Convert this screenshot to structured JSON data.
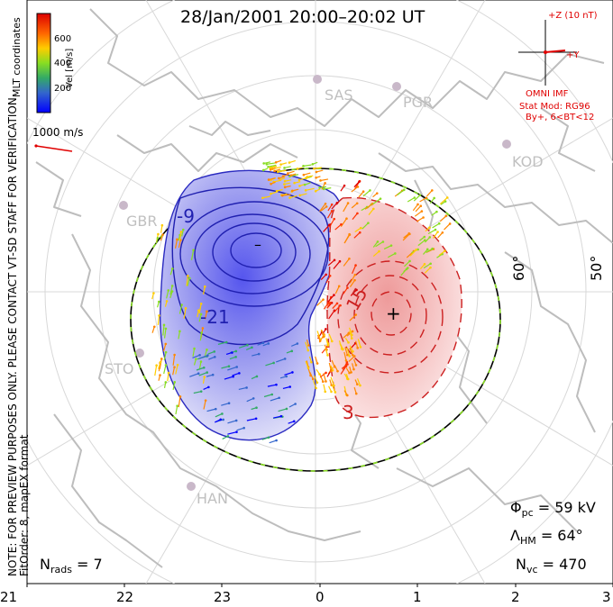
{
  "title": "28/Jan/2001  20:00–20:02 UT",
  "coordinate_system": "MLT coordinates",
  "vel_legend": {
    "label": "Vel [m/s]",
    "ticks": [
      "600",
      "400",
      "200"
    ],
    "colors": [
      "#0000ff",
      "#3366cc",
      "#33aa66",
      "#88dd22",
      "#ffcc00",
      "#ff8800",
      "#ff3300",
      "#dd0000"
    ]
  },
  "scale_vector_label": "1000 m/s",
  "imf": {
    "z_label": "+Z (10 nT)",
    "y_label": "+Y",
    "source": "OMNI IMF",
    "stat_mod": "Stat Mod: RG96",
    "condition": "By+, 6<BT<12",
    "color": "#e00000"
  },
  "side_note": "NOTE: FOR PREVIEW PURPOSES ONLY. PLEASE CONTACT VT-SD STAFF FOR VERIFICATION.",
  "fit_order": "FitOrder: 8, mapEX format",
  "stations": [
    "SAS",
    "PGR",
    "KOD",
    "GBR",
    "STO",
    "HAN"
  ],
  "latitude_labels": [
    "60°",
    "50°"
  ],
  "contour_labels": [
    "-9",
    "-21",
    "15",
    "3"
  ],
  "potential_markers": {
    "min": "–",
    "max": "+"
  },
  "stats": {
    "phi_label": "Φ",
    "phi_sub": "pc",
    "phi_value": "= 59 kV",
    "lambda_label": "Λ",
    "lambda_sub": "HM",
    "lambda_value": "= 64°",
    "nvc_label": "N",
    "nvc_sub": "vc",
    "nvc_value": "= 470",
    "nrads_label": "N",
    "nrads_sub": "rads",
    "nrads_value": "= 7"
  },
  "mlt_axis": [
    "21",
    "22",
    "23",
    "0",
    "1",
    "2",
    "3"
  ]
}
